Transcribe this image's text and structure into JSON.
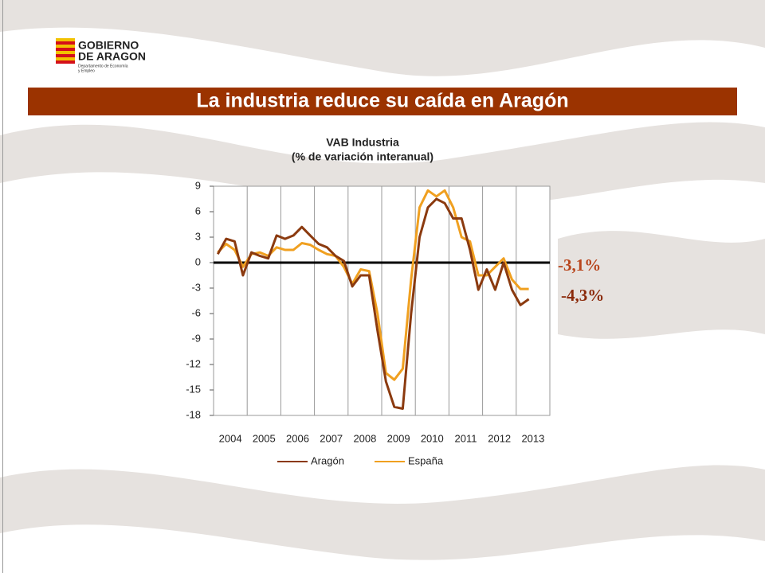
{
  "header": {
    "logo_line1": "GOBIERNO",
    "logo_line2": "DE ARAGON",
    "logo_sub1": "Departamento de Economía",
    "logo_sub2": "y Empleo",
    "title": "La industria reduce su caída en Aragón"
  },
  "chart_data": {
    "type": "line",
    "title": "VAB Industria",
    "subtitle": "(% de variación interanual)",
    "categories": [
      "2004",
      null,
      null,
      null,
      "2005",
      null,
      null,
      null,
      "2006",
      null,
      null,
      null,
      "2007",
      null,
      null,
      null,
      "2008",
      null,
      null,
      null,
      "2009",
      null,
      null,
      null,
      "2010",
      null,
      null,
      null,
      "2011",
      null,
      null,
      null,
      "2012",
      null,
      null,
      null,
      "2013",
      null,
      null,
      null
    ],
    "series": [
      {
        "name": "Aragón",
        "color": "#8b3a0f",
        "values": [
          1.0,
          2.8,
          2.5,
          -1.5,
          1.2,
          0.8,
          0.5,
          3.2,
          2.8,
          3.2,
          4.2,
          3.2,
          2.2,
          1.8,
          0.8,
          0.2,
          -2.8,
          -1.5,
          -1.5,
          -8,
          -14,
          -17,
          -17.2,
          -6,
          3,
          6.5,
          7.5,
          7.0,
          5.2,
          5.2,
          1.5,
          -3.2,
          -0.8,
          -3.2,
          0,
          -3.2,
          -5.0,
          -4.3,
          null,
          null
        ]
      },
      {
        "name": "España",
        "color": "#f0a020",
        "values": [
          1.2,
          2.2,
          1.5,
          -0.5,
          1.0,
          1.2,
          0.8,
          1.8,
          1.5,
          1.5,
          2.3,
          2.1,
          1.5,
          1.0,
          0.8,
          -0.5,
          -2.5,
          -0.8,
          -1.0,
          -6,
          -13,
          -13.8,
          -12.5,
          -2,
          6.5,
          8.5,
          7.8,
          8.5,
          6.5,
          3.0,
          2.5,
          -1.5,
          -1.5,
          -0.5,
          0.5,
          -2.0,
          -3.1,
          -3.1,
          null,
          null
        ]
      }
    ],
    "ylim": [
      -18,
      9
    ],
    "yticks": [
      -18,
      -15,
      -12,
      -9,
      -6,
      -3,
      0,
      3,
      6,
      9
    ],
    "xgrid": true,
    "legend": "bottom",
    "annotations": [
      {
        "text": "-3,1%",
        "color": "#b8451c"
      },
      {
        "text": "-4,3%",
        "color": "#8b2a0a"
      }
    ]
  }
}
